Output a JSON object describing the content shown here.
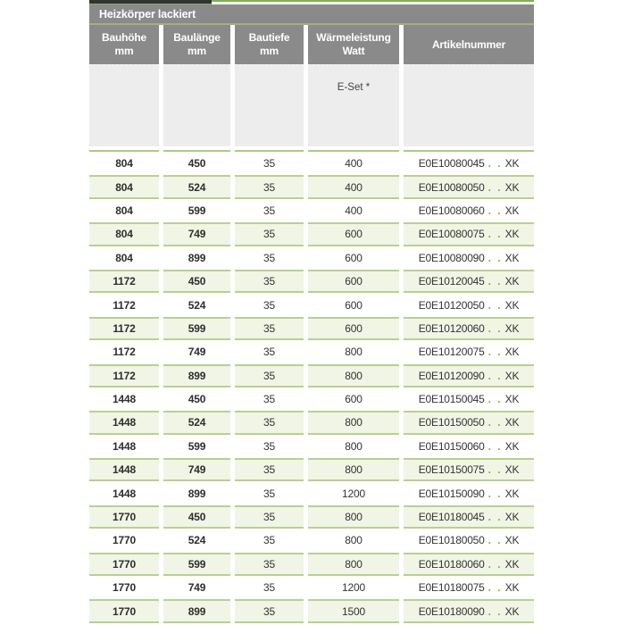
{
  "title": "Heizkörper lackiert",
  "table": {
    "columns": [
      {
        "line1": "Bauhöhe",
        "line2": "mm"
      },
      {
        "line1": "Baulänge",
        "line2": "mm"
      },
      {
        "line1": "Bautiefe",
        "line2": "mm"
      },
      {
        "line1": "Wärmeleistung",
        "line2": "Watt"
      },
      {
        "line1": "Artikelnummer",
        "line2": ""
      }
    ],
    "subheader_eset": "E-Set *",
    "artikel_dots": ". .",
    "artikel_suffix": "XK",
    "rows": [
      {
        "bauhoehe": "804",
        "baulaenge": "450",
        "bautiefe": "35",
        "watt": "400",
        "artikel": "E0E10080045"
      },
      {
        "bauhoehe": "804",
        "baulaenge": "524",
        "bautiefe": "35",
        "watt": "400",
        "artikel": "E0E10080050"
      },
      {
        "bauhoehe": "804",
        "baulaenge": "599",
        "bautiefe": "35",
        "watt": "400",
        "artikel": "E0E10080060"
      },
      {
        "bauhoehe": "804",
        "baulaenge": "749",
        "bautiefe": "35",
        "watt": "600",
        "artikel": "E0E10080075"
      },
      {
        "bauhoehe": "804",
        "baulaenge": "899",
        "bautiefe": "35",
        "watt": "600",
        "artikel": "E0E10080090"
      },
      {
        "bauhoehe": "1172",
        "baulaenge": "450",
        "bautiefe": "35",
        "watt": "600",
        "artikel": "E0E10120045"
      },
      {
        "bauhoehe": "1172",
        "baulaenge": "524",
        "bautiefe": "35",
        "watt": "600",
        "artikel": "E0E10120050"
      },
      {
        "bauhoehe": "1172",
        "baulaenge": "599",
        "bautiefe": "35",
        "watt": "600",
        "artikel": "E0E10120060"
      },
      {
        "bauhoehe": "1172",
        "baulaenge": "749",
        "bautiefe": "35",
        "watt": "800",
        "artikel": "E0E10120075"
      },
      {
        "bauhoehe": "1172",
        "baulaenge": "899",
        "bautiefe": "35",
        "watt": "800",
        "artikel": "E0E10120090"
      },
      {
        "bauhoehe": "1448",
        "baulaenge": "450",
        "bautiefe": "35",
        "watt": "600",
        "artikel": "E0E10150045"
      },
      {
        "bauhoehe": "1448",
        "baulaenge": "524",
        "bautiefe": "35",
        "watt": "800",
        "artikel": "E0E10150050"
      },
      {
        "bauhoehe": "1448",
        "baulaenge": "599",
        "bautiefe": "35",
        "watt": "800",
        "artikel": "E0E10150060"
      },
      {
        "bauhoehe": "1448",
        "baulaenge": "749",
        "bautiefe": "35",
        "watt": "800",
        "artikel": "E0E10150075"
      },
      {
        "bauhoehe": "1448",
        "baulaenge": "899",
        "bautiefe": "35",
        "watt": "1200",
        "artikel": "E0E10150090"
      },
      {
        "bauhoehe": "1770",
        "baulaenge": "450",
        "bautiefe": "35",
        "watt": "800",
        "artikel": "E0E10180045"
      },
      {
        "bauhoehe": "1770",
        "baulaenge": "524",
        "bautiefe": "35",
        "watt": "800",
        "artikel": "E0E10180050"
      },
      {
        "bauhoehe": "1770",
        "baulaenge": "599",
        "bautiefe": "35",
        "watt": "800",
        "artikel": "E0E10180060"
      },
      {
        "bauhoehe": "1770",
        "baulaenge": "749",
        "bautiefe": "35",
        "watt": "1200",
        "artikel": "E0E10180075"
      },
      {
        "bauhoehe": "1770",
        "baulaenge": "899",
        "bautiefe": "35",
        "watt": "1500",
        "artikel": "E0E10180090"
      }
    ]
  },
  "colors": {
    "accent_green": "#7bb255",
    "dark_tab": "#333333",
    "header_gray": "#8a8a8a",
    "olive_line": "#a8ae7a",
    "subheader_gray": "#ededed",
    "row_green_bg": "#f1f5e5",
    "row_green_border": "#b9d08f",
    "dots_green": "#79b23e"
  }
}
